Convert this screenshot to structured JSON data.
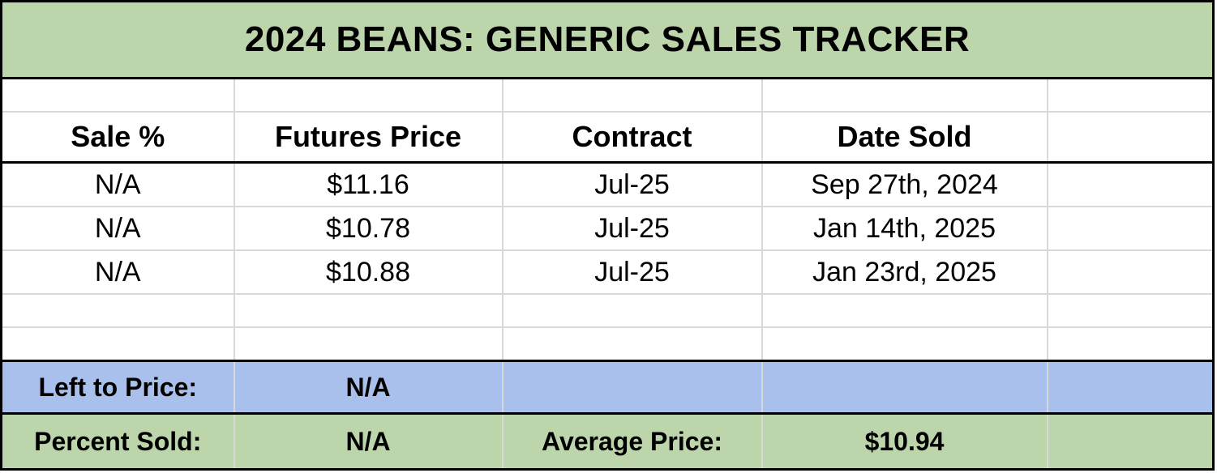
{
  "title": "2024 BEANS: GENERIC SALES TRACKER",
  "header": {
    "cells": [
      "Sale %",
      "Futures Price",
      "Contract",
      "Date Sold",
      ""
    ]
  },
  "sales": [
    {
      "sale_pct": "N/A",
      "futures_price": "$11.16",
      "contract": "Jul-25",
      "date_sold": "Sep 27th, 2024"
    },
    {
      "sale_pct": "N/A",
      "futures_price": "$10.78",
      "contract": "Jul-25",
      "date_sold": "Jan 14th, 2025"
    },
    {
      "sale_pct": "N/A",
      "futures_price": "$10.88",
      "contract": "Jul-25",
      "date_sold": "Jan 23rd, 2025"
    }
  ],
  "summary": {
    "left_to_price_label": "Left to Price:",
    "left_to_price_value": "N/A",
    "percent_sold_label": "Percent Sold:",
    "percent_sold_value": "N/A",
    "average_price_label": "Average Price:",
    "average_price_value": "$10.94"
  },
  "colors": {
    "title_green": "#bcd5ab",
    "summary_blue": "#a9bfec",
    "summary_green": "#bcd5ab",
    "gridline_gray": "#d9d9d9",
    "border_black": "#000000"
  }
}
